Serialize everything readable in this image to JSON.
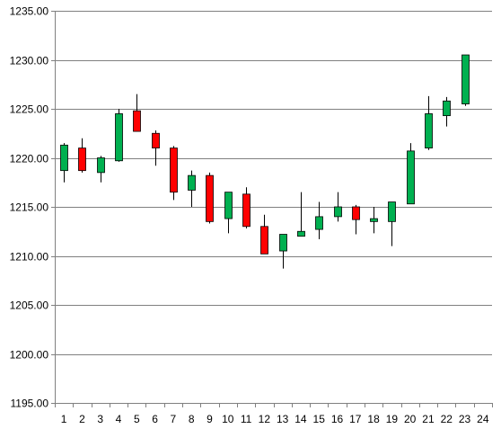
{
  "chart_data": {
    "type": "candlestick",
    "title": "",
    "xlabel": "",
    "ylabel": "",
    "ylim": [
      1195,
      1235
    ],
    "ytick_step": 5,
    "ytick_labels": [
      "1195.00",
      "1200.00",
      "1205.00",
      "1210.00",
      "1215.00",
      "1220.00",
      "1225.00",
      "1230.00",
      "1235.00"
    ],
    "x_tick_labels": [
      "1",
      "2",
      "3",
      "4",
      "5",
      "6",
      "7",
      "8",
      "9",
      "10",
      "11",
      "12",
      "13",
      "14",
      "15",
      "16",
      "17",
      "18",
      "19",
      "20",
      "21",
      "22",
      "23",
      "24"
    ],
    "grid": "horizontal",
    "legend": "none",
    "colors": {
      "up": "#00b050",
      "down": "#ff0000",
      "wick": "#000000",
      "grid": "#808080",
      "axis": "#808080"
    },
    "candles": [
      {
        "x": "1",
        "open": 1218.7,
        "high": 1221.5,
        "low": 1217.5,
        "close": 1221.3
      },
      {
        "x": "2",
        "open": 1221.0,
        "high": 1222.0,
        "low": 1218.5,
        "close": 1218.7
      },
      {
        "x": "3",
        "open": 1218.5,
        "high": 1220.2,
        "low": 1217.5,
        "close": 1220.0
      },
      {
        "x": "4",
        "open": 1219.7,
        "high": 1225.0,
        "low": 1219.6,
        "close": 1224.5
      },
      {
        "x": "5",
        "open": 1224.8,
        "high": 1226.5,
        "low": 1222.7,
        "close": 1222.7
      },
      {
        "x": "6",
        "open": 1222.5,
        "high": 1222.8,
        "low": 1219.2,
        "close": 1221.0
      },
      {
        "x": "7",
        "open": 1221.0,
        "high": 1221.2,
        "low": 1215.7,
        "close": 1216.5
      },
      {
        "x": "8",
        "open": 1216.7,
        "high": 1218.7,
        "low": 1215.0,
        "close": 1218.2
      },
      {
        "x": "9",
        "open": 1218.2,
        "high": 1218.5,
        "low": 1213.3,
        "close": 1213.5
      },
      {
        "x": "10",
        "open": 1213.8,
        "high": 1216.5,
        "low": 1212.3,
        "close": 1216.5
      },
      {
        "x": "11",
        "open": 1216.3,
        "high": 1217.0,
        "low": 1212.8,
        "close": 1213.0
      },
      {
        "x": "12",
        "open": 1213.0,
        "high": 1214.2,
        "low": 1210.2,
        "close": 1210.2
      },
      {
        "x": "13",
        "open": 1210.5,
        "high": 1212.2,
        "low": 1208.7,
        "close": 1212.2
      },
      {
        "x": "14",
        "open": 1212.0,
        "high": 1216.5,
        "low": 1212.0,
        "close": 1212.5
      },
      {
        "x": "15",
        "open": 1212.7,
        "high": 1215.5,
        "low": 1211.7,
        "close": 1214.0
      },
      {
        "x": "16",
        "open": 1214.0,
        "high": 1216.5,
        "low": 1213.5,
        "close": 1215.0
      },
      {
        "x": "17",
        "open": 1215.0,
        "high": 1215.2,
        "low": 1212.2,
        "close": 1213.7
      },
      {
        "x": "18",
        "open": 1213.5,
        "high": 1215.0,
        "low": 1212.3,
        "close": 1213.8
      },
      {
        "x": "19",
        "open": 1213.5,
        "high": 1215.5,
        "low": 1211.0,
        "close": 1215.5
      },
      {
        "x": "20",
        "open": 1215.3,
        "high": 1221.5,
        "low": 1215.3,
        "close": 1220.7
      },
      {
        "x": "21",
        "open": 1221.0,
        "high": 1226.3,
        "low": 1220.8,
        "close": 1224.5
      },
      {
        "x": "22",
        "open": 1224.3,
        "high": 1226.2,
        "low": 1223.2,
        "close": 1225.8
      },
      {
        "x": "23",
        "open": 1225.5,
        "high": 1230.5,
        "low": 1225.3,
        "close": 1230.5
      }
    ]
  }
}
